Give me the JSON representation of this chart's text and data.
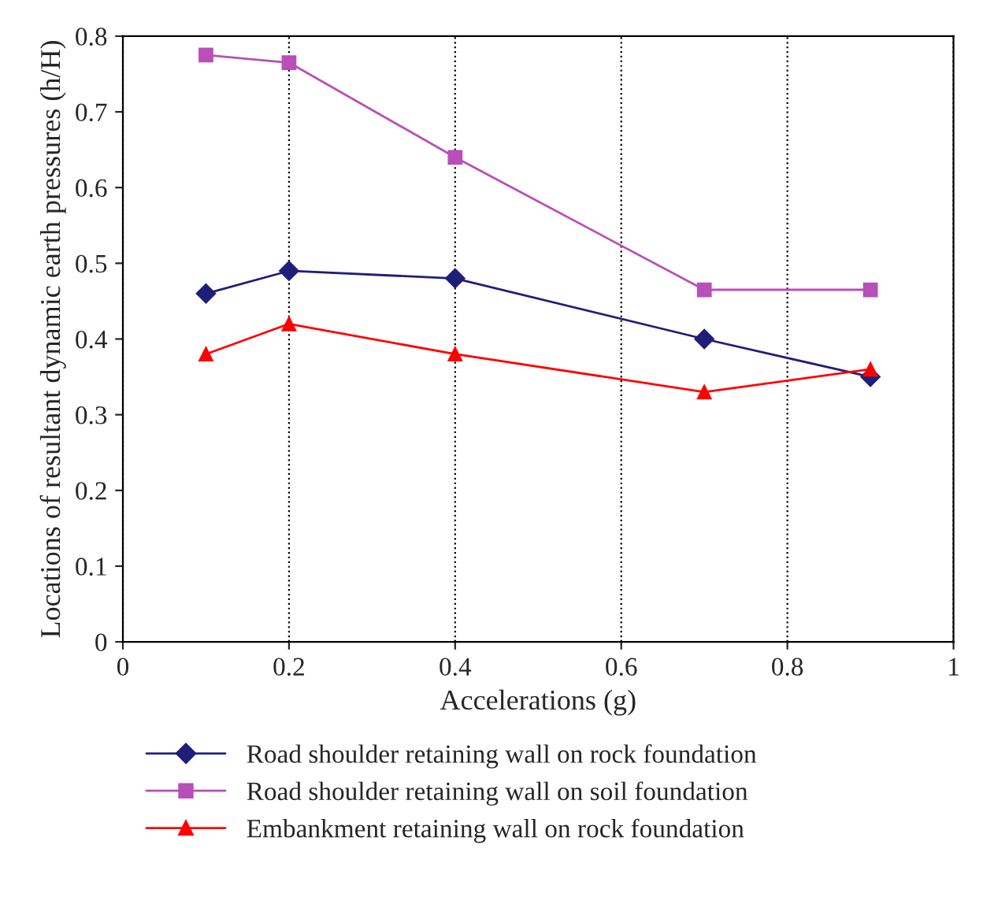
{
  "chart_data": {
    "type": "line",
    "xlabel": "Accelerations (g)",
    "ylabel": "Locations of resultant dynamic earth pressures (h/H)",
    "x": [
      0.1,
      0.2,
      0.4,
      0.7,
      0.9
    ],
    "series": [
      {
        "name": "Road shoulder retaining wall on rock foundation",
        "color": "#1f1f7a",
        "marker": "diamond",
        "values": [
          0.46,
          0.49,
          0.48,
          0.4,
          0.35
        ]
      },
      {
        "name": "Road shoulder retaining wall on soil foundation",
        "color": "#b94fb9",
        "marker": "square",
        "values": [
          0.775,
          0.765,
          0.64,
          0.465,
          0.465
        ]
      },
      {
        "name": "Embankment retaining wall on rock foundation",
        "color": "#ff0000",
        "marker": "triangle",
        "values": [
          0.38,
          0.42,
          0.38,
          0.33,
          0.36
        ]
      }
    ],
    "xlim": [
      0,
      1
    ],
    "xticks": [
      0,
      0.2,
      0.4,
      0.6,
      0.8,
      1
    ],
    "ylim": [
      0,
      0.8
    ],
    "yticks": [
      0,
      0.1,
      0.2,
      0.3,
      0.4,
      0.5,
      0.6,
      0.7,
      0.8
    ],
    "grid": "x",
    "legend": "bottom",
    "line_style": "solid"
  }
}
